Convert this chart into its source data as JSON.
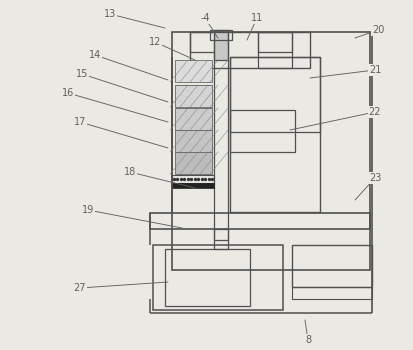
{
  "bg_color": "#ebe9e4",
  "line_color": "#505050",
  "label_color": "#606060",
  "fig_width": 4.14,
  "fig_height": 3.5,
  "labels": [
    [
      "13",
      165,
      28,
      110,
      14
    ],
    [
      "12",
      195,
      60,
      155,
      42
    ],
    [
      "-4",
      218,
      38,
      205,
      18
    ],
    [
      "11",
      247,
      40,
      257,
      18
    ],
    [
      "20",
      355,
      38,
      378,
      30
    ],
    [
      "14",
      168,
      80,
      95,
      55
    ],
    [
      "15",
      168,
      102,
      82,
      74
    ],
    [
      "16",
      168,
      122,
      68,
      93
    ],
    [
      "17",
      168,
      148,
      80,
      122
    ],
    [
      "18",
      195,
      188,
      130,
      172
    ],
    [
      "19",
      182,
      228,
      88,
      210
    ],
    [
      "21",
      310,
      78,
      375,
      70
    ],
    [
      "22",
      290,
      130,
      375,
      112
    ],
    [
      "23",
      355,
      200,
      375,
      178
    ],
    [
      "27",
      168,
      282,
      80,
      288
    ],
    [
      "8",
      305,
      320,
      308,
      340
    ]
  ]
}
